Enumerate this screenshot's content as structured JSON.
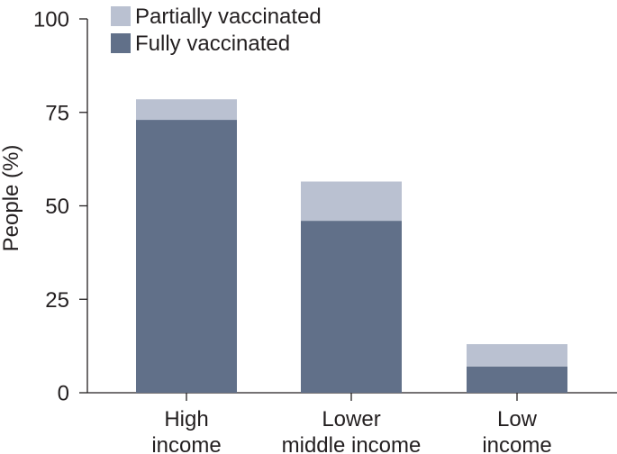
{
  "chart_data": {
    "type": "bar",
    "stacked": true,
    "categories": [
      [
        "High",
        "income"
      ],
      [
        "Lower",
        "middle income"
      ],
      [
        "Low",
        "income"
      ]
    ],
    "series": [
      {
        "name": "Fully vaccinated",
        "color": "#617089",
        "values": [
          73,
          46,
          7
        ]
      },
      {
        "name": "Partially vaccinated",
        "color": "#bac1d1",
        "values": [
          5.5,
          10.5,
          6
        ]
      }
    ],
    "ylabel": "People (%)",
    "ylim": [
      0,
      100
    ],
    "yticks": [
      0,
      25,
      50,
      75,
      100
    ],
    "grid": false,
    "legend": "top-left"
  }
}
